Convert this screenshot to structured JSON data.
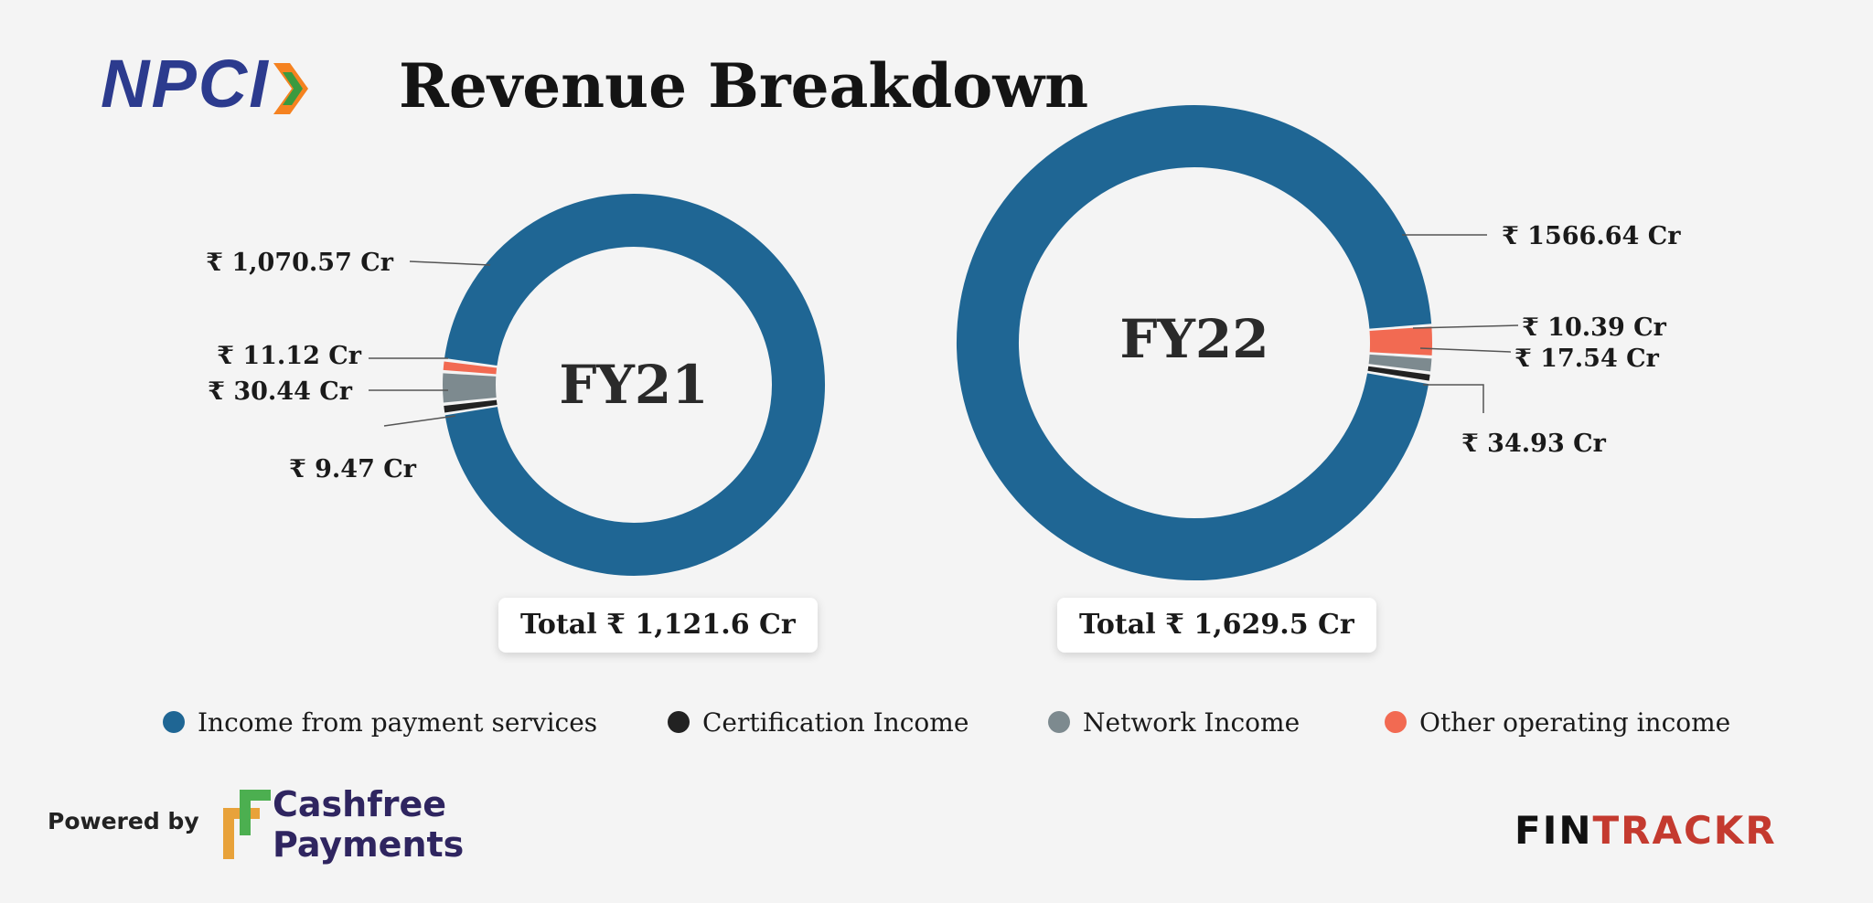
{
  "header": {
    "brand_logo": "NPCI",
    "title": "Revenue Breakdown"
  },
  "colors": {
    "payment": "#1f6694",
    "certification": "#222222",
    "network": "#7d8a8f",
    "other": "#f26a52",
    "background": "#f4f4f4"
  },
  "chart_data": [
    {
      "type": "pie",
      "title": "FY21",
      "series": [
        {
          "name": "Income from payment services",
          "value": 1070.57,
          "label": "₹ 1,070.57 Cr"
        },
        {
          "name": "Certification Income",
          "value": 9.47,
          "label": "₹ 9.47 Cr"
        },
        {
          "name": "Network Income",
          "value": 30.44,
          "label": "₹ 30.44 Cr"
        },
        {
          "name": "Other operating income",
          "value": 11.12,
          "label": "₹ 11.12 Cr"
        }
      ],
      "total_label": "Total ₹ 1,121.6 Cr"
    },
    {
      "type": "pie",
      "title": "FY22",
      "series": [
        {
          "name": "Income from payment services",
          "value": 1566.64,
          "label": "₹ 1566.64 Cr"
        },
        {
          "name": "Certification Income",
          "value": 10.39,
          "label": "₹ 10.39 Cr"
        },
        {
          "name": "Network Income",
          "value": 17.54,
          "label": "₹ 17.54 Cr"
        },
        {
          "name": "Other operating income",
          "value": 34.93,
          "label": "₹ 34.93 Cr"
        }
      ],
      "total_label": "Total ₹ 1,629.5 Cr"
    }
  ],
  "legend": [
    {
      "label": "Income from payment services",
      "color": "#1f6694"
    },
    {
      "label": "Certification Income",
      "color": "#222222"
    },
    {
      "label": "Network Income",
      "color": "#7d8a8f"
    },
    {
      "label": "Other operating income",
      "color": "#f26a52"
    }
  ],
  "footer": {
    "powered_by": "Powered by",
    "sponsor_line1": "Cashfree",
    "sponsor_line2": "Payments",
    "brand_part1": "FIN",
    "brand_part2": "TRACKR"
  }
}
